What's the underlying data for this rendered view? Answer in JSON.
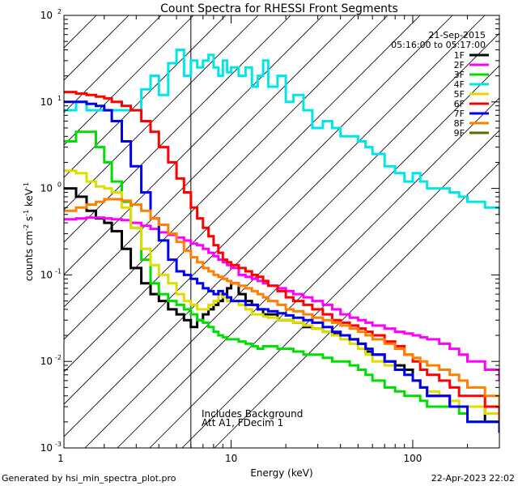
{
  "chart_data": {
    "type": "line",
    "title": "Count Spectra for RHESSI Front Segments",
    "date": "21-Sep-2015",
    "time_range": "05:16:00 to 05:17:00",
    "xlabel": "Energy (keV)",
    "ylabel_base": "counts cm",
    "ylabel_units": [
      "-2",
      "-1",
      "-1"
    ],
    "x_scale": "log",
    "y_scale": "log",
    "xlim": [
      1.2,
      300
    ],
    "ylim": [
      0.001,
      100
    ],
    "x_ticks": [
      {
        "v": 10,
        "label": "10"
      },
      {
        "v": 100,
        "label": "100"
      }
    ],
    "x_tick_first_label": "1",
    "y_ticks": [
      {
        "v": 0.001,
        "base": "10",
        "exp": "-3"
      },
      {
        "v": 0.01,
        "base": "10",
        "exp": "-2"
      },
      {
        "v": 0.1,
        "base": "10",
        "exp": "-1"
      },
      {
        "v": 1,
        "base": "10",
        "exp": "0"
      },
      {
        "v": 10,
        "base": "10",
        "exp": "1"
      },
      {
        "v": 100,
        "base": "10",
        "exp": "2"
      }
    ],
    "shaded_region": {
      "x_from": 1.2,
      "x_to": 6.0,
      "pattern": "diagonal hatch"
    },
    "annotations": [
      "Includes Background",
      "Att A1, FDecim 1"
    ],
    "legend_position": "top-right",
    "series": [
      {
        "name": "1F",
        "color": "#000000",
        "x": [
          1.2,
          1.4,
          1.6,
          1.8,
          2.0,
          2.2,
          2.5,
          2.8,
          3.2,
          3.6,
          4.0,
          4.5,
          5.0,
          5.5,
          6.0,
          6.5,
          7.0,
          7.5,
          8.0,
          8.5,
          9.0,
          9.5,
          10.0,
          11.0,
          12.0,
          13.0,
          14.0,
          15.0,
          16.0,
          18.0,
          20.0,
          22.0,
          25.0,
          28.0,
          32.0,
          36.0,
          40.0,
          45.0,
          50.0,
          55.0,
          60.0,
          70.0,
          80.0,
          90.0,
          100.0,
          110.0,
          120.0,
          140.0,
          160.0,
          180.0,
          200.0,
          250.0,
          300.0
        ],
        "y": [
          1.0,
          0.8,
          0.55,
          0.45,
          0.4,
          0.32,
          0.2,
          0.12,
          0.08,
          0.06,
          0.05,
          0.04,
          0.035,
          0.03,
          0.025,
          0.03,
          0.035,
          0.04,
          0.045,
          0.05,
          0.06,
          0.07,
          0.08,
          0.06,
          0.05,
          0.045,
          0.04,
          0.035,
          0.035,
          0.03,
          0.03,
          0.028,
          0.025,
          0.024,
          0.022,
          0.021,
          0.02,
          0.018,
          0.016,
          0.013,
          0.012,
          0.01,
          0.009,
          0.008,
          0.006,
          0.005,
          0.004,
          0.004,
          0.003,
          0.003,
          0.003,
          0.002,
          0.0015
        ]
      },
      {
        "name": "2F",
        "color": "#ff00ff",
        "x": [
          1.2,
          1.4,
          1.6,
          1.8,
          2.0,
          2.2,
          2.5,
          2.8,
          3.2,
          3.6,
          4.0,
          4.5,
          5.0,
          5.5,
          6.0,
          6.5,
          7.0,
          7.5,
          8.0,
          8.5,
          9.0,
          9.5,
          10.0,
          11.0,
          12.0,
          13.0,
          14.0,
          15.0,
          16.0,
          18.0,
          20.0,
          22.0,
          25.0,
          28.0,
          32.0,
          36.0,
          40.0,
          45.0,
          50.0,
          55.0,
          60.0,
          70.0,
          80.0,
          90.0,
          100.0,
          110.0,
          120.0,
          140.0,
          160.0,
          180.0,
          200.0,
          250.0,
          300.0
        ],
        "y": [
          0.44,
          0.45,
          0.46,
          0.46,
          0.45,
          0.44,
          0.43,
          0.4,
          0.37,
          0.34,
          0.31,
          0.29,
          0.27,
          0.25,
          0.23,
          0.22,
          0.2,
          0.18,
          0.165,
          0.15,
          0.14,
          0.13,
          0.12,
          0.1,
          0.095,
          0.09,
          0.085,
          0.08,
          0.075,
          0.07,
          0.065,
          0.06,
          0.055,
          0.05,
          0.045,
          0.04,
          0.035,
          0.032,
          0.03,
          0.028,
          0.026,
          0.024,
          0.022,
          0.021,
          0.02,
          0.019,
          0.018,
          0.016,
          0.014,
          0.012,
          0.01,
          0.008,
          0.006
        ]
      },
      {
        "name": "3F",
        "color": "#00dd00",
        "x": [
          1.2,
          1.4,
          1.6,
          1.8,
          2.0,
          2.2,
          2.5,
          2.8,
          3.2,
          3.6,
          4.0,
          4.5,
          5.0,
          5.5,
          6.0,
          6.5,
          7.0,
          7.5,
          8.0,
          8.5,
          9.0,
          9.5,
          10.0,
          11.0,
          12.0,
          13.0,
          14.0,
          15.0,
          16.0,
          18.0,
          20.0,
          22.0,
          25.0,
          28.0,
          32.0,
          36.0,
          40.0,
          45.0,
          50.0,
          55.0,
          60.0,
          70.0,
          80.0,
          90.0,
          100.0,
          110.0,
          120.0,
          140.0,
          160.0,
          180.0,
          200.0,
          250.0,
          300.0
        ],
        "y": [
          3.5,
          4.5,
          4.5,
          3.0,
          2.0,
          1.2,
          0.7,
          0.35,
          0.15,
          0.08,
          0.06,
          0.05,
          0.045,
          0.04,
          0.035,
          0.03,
          0.028,
          0.025,
          0.022,
          0.02,
          0.019,
          0.018,
          0.018,
          0.017,
          0.016,
          0.015,
          0.014,
          0.015,
          0.015,
          0.014,
          0.014,
          0.013,
          0.012,
          0.012,
          0.011,
          0.01,
          0.01,
          0.009,
          0.008,
          0.007,
          0.006,
          0.005,
          0.0045,
          0.004,
          0.004,
          0.0035,
          0.003,
          0.003,
          0.003,
          0.0025,
          0.002,
          0.002,
          0.0015
        ]
      },
      {
        "name": "4F",
        "color": "#00e5e5",
        "x": [
          1.2,
          1.4,
          1.6,
          1.8,
          2.0,
          2.2,
          2.5,
          2.8,
          3.2,
          3.6,
          4.0,
          4.5,
          5.0,
          5.5,
          6.0,
          6.5,
          7.0,
          7.5,
          8.0,
          8.5,
          9.0,
          9.5,
          10.0,
          11.0,
          12.0,
          13.0,
          14.0,
          15.0,
          16.0,
          18.0,
          20.0,
          22.0,
          25.0,
          28.0,
          32.0,
          36.0,
          40.0,
          45.0,
          50.0,
          55.0,
          60.0,
          70.0,
          80.0,
          90.0,
          100.0,
          110.0,
          120.0,
          140.0,
          160.0,
          180.0,
          200.0,
          250.0,
          300.0
        ],
        "y": [
          8.0,
          10.0,
          8.0,
          8.0,
          8.0,
          8.0,
          8.0,
          8.0,
          14.0,
          20.0,
          12.0,
          28.0,
          40.0,
          20.0,
          30.0,
          25.0,
          30.0,
          35.0,
          25.0,
          20.0,
          30.0,
          22.0,
          25.0,
          20.0,
          25.0,
          15.0,
          20.0,
          30.0,
          15.0,
          20.0,
          10.0,
          12.0,
          8.0,
          5.0,
          6.0,
          5.0,
          4.0,
          4.0,
          3.5,
          3.0,
          2.5,
          1.8,
          1.5,
          1.2,
          1.5,
          1.2,
          1.0,
          1.0,
          0.9,
          0.8,
          0.7,
          0.6,
          0.5
        ]
      },
      {
        "name": "5F",
        "color": "#dddd00",
        "x": [
          1.2,
          1.4,
          1.6,
          1.8,
          2.0,
          2.2,
          2.5,
          2.8,
          3.2,
          3.6,
          4.0,
          4.5,
          5.0,
          5.5,
          6.0,
          6.5,
          7.0,
          7.5,
          8.0,
          8.5,
          9.0,
          9.5,
          10.0,
          11.0,
          12.0,
          13.0,
          14.0,
          15.0,
          16.0,
          18.0,
          20.0,
          22.0,
          25.0,
          28.0,
          32.0,
          36.0,
          40.0,
          45.0,
          50.0,
          55.0,
          60.0,
          70.0,
          80.0,
          90.0,
          100.0,
          110.0,
          120.0,
          140.0,
          160.0,
          180.0,
          200.0,
          250.0,
          300.0
        ],
        "y": [
          1.6,
          1.5,
          1.2,
          1.05,
          1.0,
          0.9,
          0.6,
          0.35,
          0.2,
          0.13,
          0.1,
          0.08,
          0.06,
          0.05,
          0.045,
          0.04,
          0.04,
          0.045,
          0.05,
          0.06,
          0.055,
          0.05,
          0.05,
          0.045,
          0.04,
          0.035,
          0.035,
          0.033,
          0.032,
          0.03,
          0.03,
          0.028,
          0.026,
          0.024,
          0.022,
          0.02,
          0.018,
          0.016,
          0.014,
          0.012,
          0.01,
          0.009,
          0.008,
          0.007,
          0.006,
          0.005,
          0.0045,
          0.004,
          0.0035,
          0.003,
          0.003,
          0.0025,
          0.002
        ]
      },
      {
        "name": "6F",
        "color": "#ff0000",
        "x": [
          1.2,
          1.4,
          1.6,
          1.8,
          2.0,
          2.2,
          2.5,
          2.8,
          3.2,
          3.6,
          4.0,
          4.5,
          5.0,
          5.5,
          6.0,
          6.5,
          7.0,
          7.5,
          8.0,
          8.5,
          9.0,
          9.5,
          10.0,
          11.0,
          12.0,
          13.0,
          14.0,
          15.0,
          16.0,
          18.0,
          20.0,
          22.0,
          25.0,
          28.0,
          32.0,
          36.0,
          40.0,
          45.0,
          50.0,
          55.0,
          60.0,
          70.0,
          80.0,
          90.0,
          100.0,
          110.0,
          120.0,
          140.0,
          160.0,
          180.0,
          200.0,
          250.0,
          300.0
        ],
        "y": [
          13.0,
          12.5,
          12.0,
          11.5,
          11.0,
          10.0,
          9.0,
          8.0,
          6.0,
          4.5,
          3.0,
          2.0,
          1.3,
          0.9,
          0.6,
          0.45,
          0.35,
          0.28,
          0.22,
          0.18,
          0.15,
          0.14,
          0.13,
          0.12,
          0.11,
          0.1,
          0.095,
          0.085,
          0.075,
          0.065,
          0.055,
          0.05,
          0.045,
          0.04,
          0.035,
          0.03,
          0.028,
          0.026,
          0.024,
          0.022,
          0.02,
          0.017,
          0.015,
          0.012,
          0.01,
          0.008,
          0.007,
          0.006,
          0.005,
          0.004,
          0.004,
          0.003,
          0.002
        ]
      },
      {
        "name": "7F",
        "color": "#0000ee",
        "x": [
          1.2,
          1.4,
          1.6,
          1.8,
          2.0,
          2.2,
          2.5,
          2.8,
          3.2,
          3.6,
          4.0,
          4.5,
          5.0,
          5.5,
          6.0,
          6.5,
          7.0,
          7.5,
          8.0,
          8.5,
          9.0,
          9.5,
          10.0,
          11.0,
          12.0,
          13.0,
          14.0,
          15.0,
          16.0,
          18.0,
          20.0,
          22.0,
          25.0,
          28.0,
          32.0,
          36.0,
          40.0,
          45.0,
          50.0,
          55.0,
          60.0,
          70.0,
          80.0,
          90.0,
          100.0,
          110.0,
          120.0,
          140.0,
          160.0,
          180.0,
          200.0,
          250.0,
          300.0
        ],
        "y": [
          10.0,
          10.0,
          9.5,
          9.0,
          8.0,
          6.0,
          3.5,
          1.8,
          0.9,
          0.45,
          0.25,
          0.15,
          0.11,
          0.1,
          0.09,
          0.08,
          0.07,
          0.065,
          0.06,
          0.065,
          0.06,
          0.055,
          0.05,
          0.05,
          0.045,
          0.045,
          0.04,
          0.04,
          0.038,
          0.036,
          0.034,
          0.032,
          0.03,
          0.028,
          0.025,
          0.022,
          0.02,
          0.018,
          0.016,
          0.014,
          0.012,
          0.01,
          0.008,
          0.007,
          0.006,
          0.005,
          0.004,
          0.004,
          0.003,
          0.003,
          0.002,
          0.002,
          0.0015
        ]
      },
      {
        "name": "8F",
        "color": "#ff7f00",
        "x": [
          1.2,
          1.4,
          1.6,
          1.8,
          2.0,
          2.2,
          2.5,
          2.8,
          3.2,
          3.6,
          4.0,
          4.5,
          5.0,
          5.5,
          6.0,
          6.5,
          7.0,
          7.5,
          8.0,
          8.5,
          9.0,
          9.5,
          10.0,
          11.0,
          12.0,
          13.0,
          14.0,
          15.0,
          16.0,
          18.0,
          20.0,
          22.0,
          25.0,
          28.0,
          32.0,
          36.0,
          40.0,
          45.0,
          50.0,
          55.0,
          60.0,
          70.0,
          80.0,
          90.0,
          100.0,
          110.0,
          120.0,
          140.0,
          160.0,
          180.0,
          200.0,
          250.0,
          300.0
        ],
        "y": [
          0.55,
          0.6,
          0.65,
          0.7,
          0.75,
          0.75,
          0.72,
          0.65,
          0.55,
          0.45,
          0.38,
          0.3,
          0.24,
          0.19,
          0.16,
          0.14,
          0.12,
          0.11,
          0.1,
          0.095,
          0.09,
          0.085,
          0.08,
          0.075,
          0.07,
          0.065,
          0.06,
          0.055,
          0.05,
          0.045,
          0.04,
          0.038,
          0.035,
          0.032,
          0.03,
          0.028,
          0.026,
          0.024,
          0.022,
          0.02,
          0.018,
          0.016,
          0.014,
          0.012,
          0.011,
          0.01,
          0.009,
          0.008,
          0.007,
          0.006,
          0.005,
          0.004,
          0.003
        ]
      },
      {
        "name": "9F",
        "color": "#556b00",
        "x": [],
        "y": []
      }
    ]
  },
  "footer": {
    "generated": "Generated by hsi_min_spectra_plot.pro",
    "timestamp": "22-Apr-2023 22:02"
  }
}
